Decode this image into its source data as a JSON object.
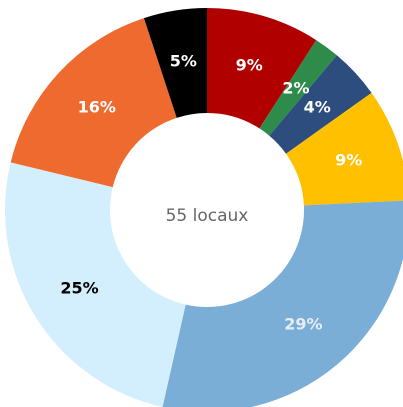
{
  "chart_data": {
    "type": "donut",
    "values": [
      9,
      2,
      4,
      9,
      29,
      25,
      16,
      5
    ],
    "value_labels": [
      "9%",
      "2%",
      "4%",
      "9%",
      "29%",
      "25%",
      "16%",
      "5%"
    ],
    "colors": [
      "#b00000",
      "#2e8b4a",
      "#2c4d7e",
      "#ffc000",
      "#7aaed6",
      "#d3eefc",
      "#ee6a2e",
      "#000000"
    ],
    "label_colors": [
      "#ffffff",
      "#ffffff",
      "#ffffff",
      "#ffffff",
      "#e6edf5",
      "#000000",
      "#ffffff",
      "#ffffff"
    ],
    "center_label": "55 locaux"
  }
}
